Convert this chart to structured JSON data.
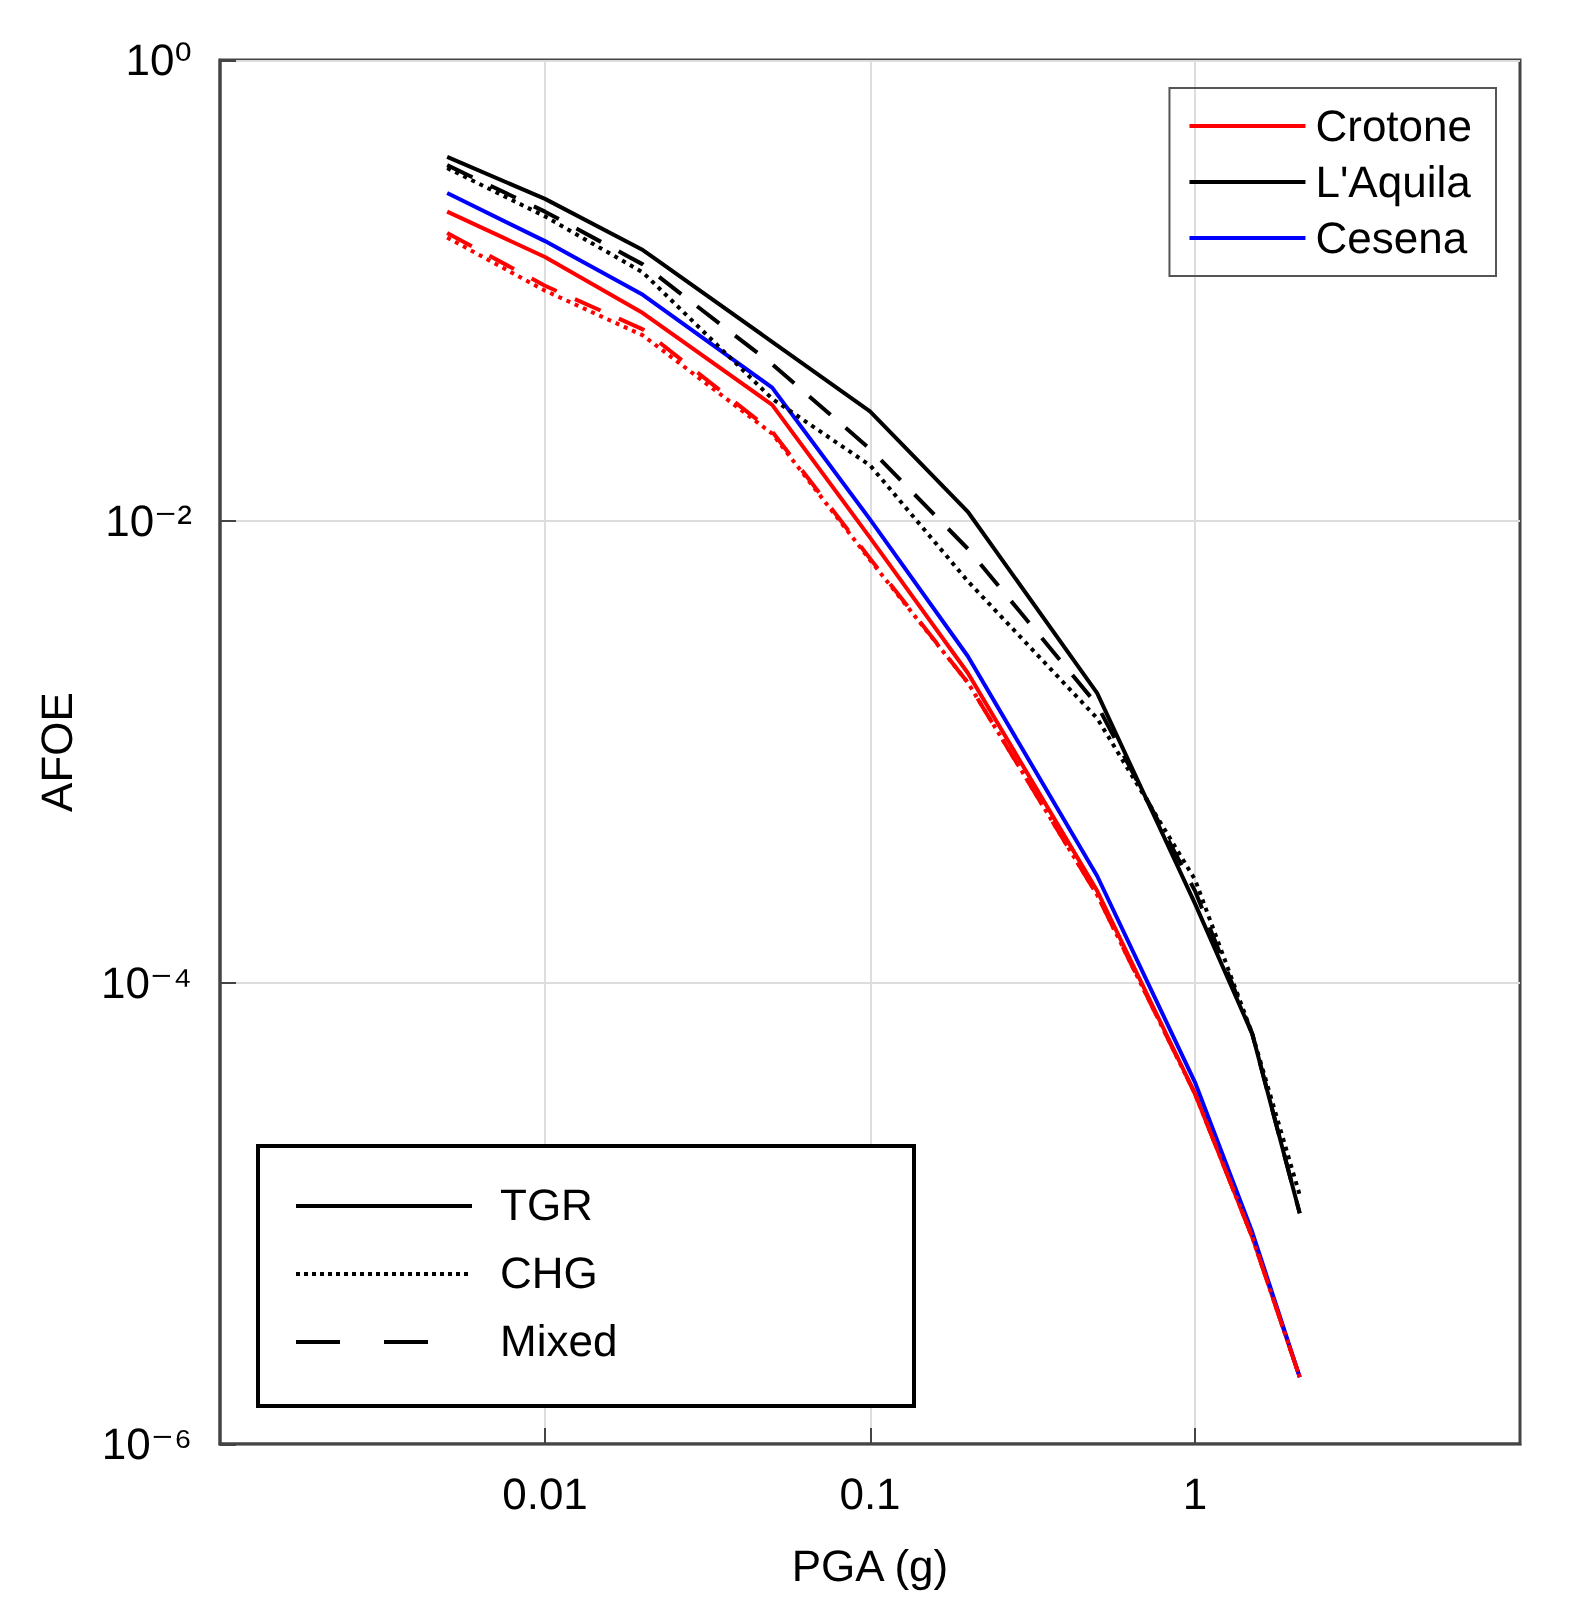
{
  "chart_data": {
    "type": "line",
    "xlabel": "PGA (g)",
    "ylabel": "AFOE",
    "log": "xy",
    "grid": true,
    "legend": "top right",
    "xlim": [
      0.001,
      10
    ],
    "xticks": [
      0.01,
      0.1,
      1
    ],
    "ylim": [
      1e-06,
      1
    ],
    "yticks": [
      {
        "value": 1e-06,
        "label": "10⁻⁶"
      },
      {
        "value": 0.0001,
        "label": "10⁻⁴"
      },
      {
        "value": 0.01,
        "label": "10⁻²"
      },
      {
        "value": 1,
        "label": "10⁰"
      }
    ],
    "x": [
      0.005,
      0.01,
      0.02,
      0.05,
      0.1,
      0.2,
      0.5,
      1,
      1.5,
      2.1
    ],
    "annotations": [
      "TGR",
      "CHG",
      "Mixed"
    ],
    "series": [
      {
        "name": "Crotone",
        "color": "#ff0000",
        "line_style": "solid",
        "values": [
          0.22,
          0.14,
          0.08,
          0.032,
          0.0085,
          0.0022,
          0.00025,
          3.3e-05,
          7.9e-06,
          1.95e-06
        ]
      },
      {
        "name": "L'Aquila",
        "color": "#000000",
        "line_style": "solid",
        "values": [
          0.38,
          0.25,
          0.15,
          0.06,
          0.03,
          0.011,
          0.0018,
          0.00022,
          6e-05,
          1e-05
        ]
      },
      {
        "name": "Cesena",
        "color": "#0000ff",
        "line_style": "solid",
        "values": [
          0.265,
          0.164,
          0.096,
          0.038,
          0.0102,
          0.0026,
          0.00029,
          3.7e-05,
          8.3e-06,
          1.95e-06
        ]
      },
      {
        "color": "#000000",
        "line_style": "dotted",
        "values": [
          0.34,
          0.21,
          0.12,
          0.034,
          0.0175,
          0.0055,
          0.0014,
          0.00028,
          6e-05,
          1.2e-05
        ]
      },
      {
        "color": "#000000",
        "line_style": "dashed",
        "values": [
          0.35,
          0.22,
          0.13,
          0.048,
          0.0206,
          0.0076,
          0.0016,
          0.00025,
          6e-05,
          1e-05
        ]
      },
      {
        "color": "#ff0000",
        "line_style": "dotted",
        "values": [
          0.17,
          0.1,
          0.064,
          0.024,
          0.0068,
          0.002,
          0.00024,
          3.3e-05,
          7.9e-06,
          1.95e-06
        ]
      },
      {
        "color": "#ff0000",
        "line_style": "dashed",
        "values": [
          0.178,
          0.105,
          0.068,
          0.0245,
          0.0069,
          0.002,
          0.00024,
          3.3e-05,
          7.9e-06,
          1.95e-06
        ]
      }
    ]
  }
}
